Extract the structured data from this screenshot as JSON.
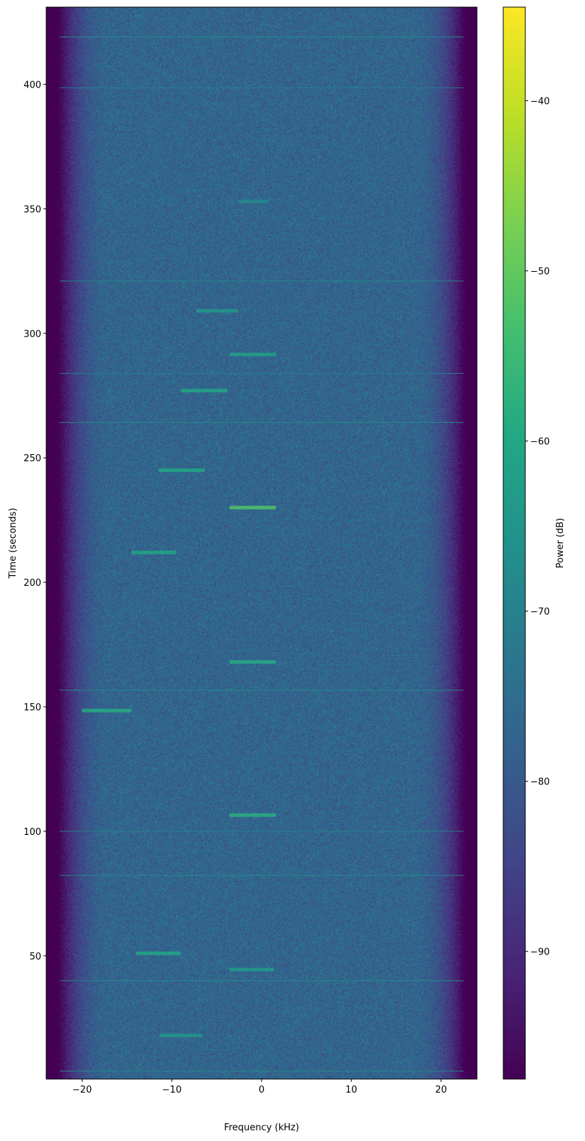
{
  "chart_data": {
    "type": "heatmap",
    "title": "",
    "xlabel": "Frequency (kHz)",
    "ylabel": "Time (seconds)",
    "colorbar_label": "Power (dB)",
    "colormap": "viridis",
    "xlim": [
      -24,
      24
    ],
    "ylim": [
      0.5,
      431
    ],
    "clim": [
      -97.5,
      -34.5
    ],
    "x_ticks": [
      {
        "v": -20,
        "label": "−20"
      },
      {
        "v": -10,
        "label": "−10"
      },
      {
        "v": 0,
        "label": "0"
      },
      {
        "v": 10,
        "label": "10"
      },
      {
        "v": 20,
        "label": "20"
      }
    ],
    "y_ticks": [
      {
        "v": 50,
        "label": "50"
      },
      {
        "v": 100,
        "label": "100"
      },
      {
        "v": 150,
        "label": "150"
      },
      {
        "v": 200,
        "label": "200"
      },
      {
        "v": 250,
        "label": "250"
      },
      {
        "v": 300,
        "label": "300"
      },
      {
        "v": 350,
        "label": "350"
      },
      {
        "v": 400,
        "label": "400"
      }
    ],
    "colorbar_ticks": [
      {
        "v": -90,
        "label": "−90"
      },
      {
        "v": -80,
        "label": "−80"
      },
      {
        "v": -70,
        "label": "−70"
      },
      {
        "v": -60,
        "label": "−60"
      },
      {
        "v": -50,
        "label": "−50"
      },
      {
        "v": -40,
        "label": "−40"
      }
    ],
    "noise_floor_db": -77,
    "band_edge_khz": 22,
    "bursts": [
      {
        "time": 18,
        "f_start": -11.4,
        "f_end": -6.6,
        "power_db": -64
      },
      {
        "time": 44.5,
        "f_start": -3.6,
        "f_end": 1.4,
        "power_db": -63
      },
      {
        "time": 51,
        "f_start": -14,
        "f_end": -9,
        "power_db": -60
      },
      {
        "time": 106.5,
        "f_start": -3.6,
        "f_end": 1.6,
        "power_db": -58
      },
      {
        "time": 148.5,
        "f_start": -20,
        "f_end": -14.5,
        "power_db": -59
      },
      {
        "time": 168,
        "f_start": -3.6,
        "f_end": 1.6,
        "power_db": -59
      },
      {
        "time": 212,
        "f_start": -14.5,
        "f_end": -9.5,
        "power_db": -60
      },
      {
        "time": 230,
        "f_start": -3.6,
        "f_end": 1.6,
        "power_db": -52
      },
      {
        "time": 245,
        "f_start": -11.5,
        "f_end": -6.3,
        "power_db": -60
      },
      {
        "time": 277,
        "f_start": -9,
        "f_end": -3.8,
        "power_db": -60
      },
      {
        "time": 291.5,
        "f_start": -3.6,
        "f_end": 1.6,
        "power_db": -62
      },
      {
        "time": 309,
        "f_start": -7.3,
        "f_end": -2.6,
        "power_db": -64
      },
      {
        "time": 353,
        "f_start": -2.6,
        "f_end": 0.8,
        "power_db": -68
      }
    ],
    "broadband_lines": [
      {
        "time": 3.7,
        "power_db": -68
      },
      {
        "time": 40,
        "power_db": -67
      },
      {
        "time": 82.3,
        "power_db": -68
      },
      {
        "time": 100,
        "power_db": -70
      },
      {
        "time": 156.7,
        "power_db": -67
      },
      {
        "time": 264.2,
        "power_db": -67
      },
      {
        "time": 283.9,
        "power_db": -70
      },
      {
        "time": 321,
        "power_db": -68
      },
      {
        "time": 398.6,
        "power_db": -70
      },
      {
        "time": 419,
        "power_db": -66
      }
    ]
  }
}
